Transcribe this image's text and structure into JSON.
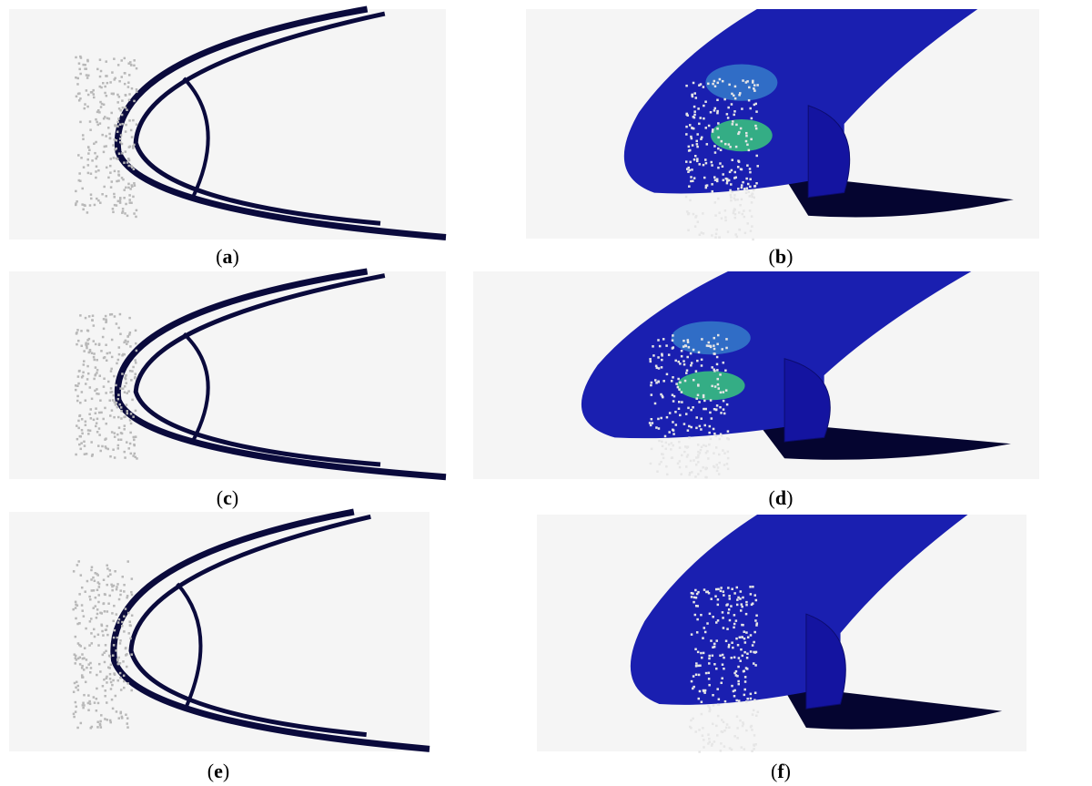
{
  "panels": [
    {
      "caption": [
        "(",
        "a",
        ")"
      ]
    },
    {
      "caption": [
        "(",
        "b",
        ")"
      ]
    },
    {
      "caption": [
        "(",
        "c",
        ")"
      ]
    },
    {
      "caption": [
        "(",
        "d",
        ")"
      ]
    },
    {
      "caption": [
        "(",
        "e",
        ")"
      ]
    },
    {
      "caption": [
        "(",
        "f",
        ")"
      ]
    }
  ]
}
